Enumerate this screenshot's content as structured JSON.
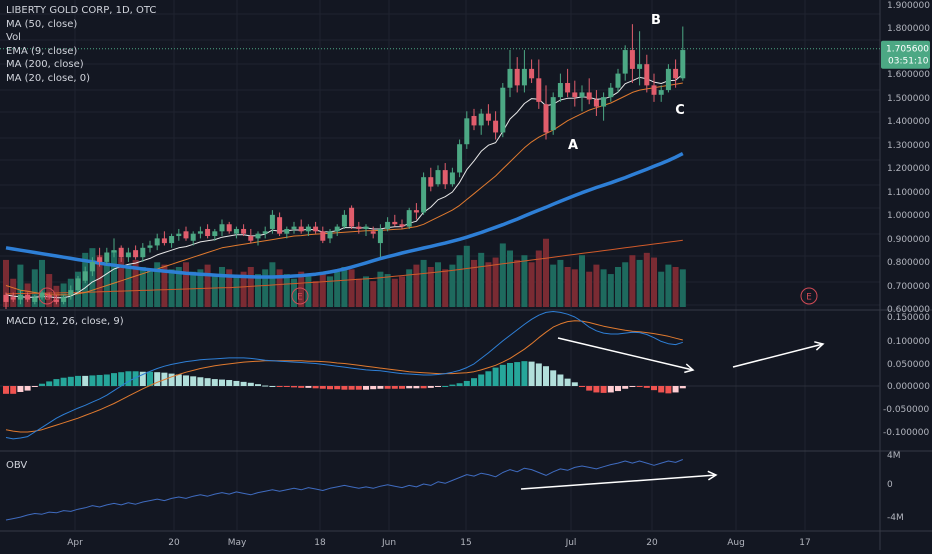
{
  "legend": {
    "title": "LIBERTY GOLD CORP, 1D, OTC",
    "items": [
      "MA (50, close)",
      "Vol",
      "EMA (9, close)",
      "MA (200, close)",
      "MA (20, close, 0)"
    ]
  },
  "colors": {
    "background": "#131722",
    "grid": "#1f2330",
    "up": "#4ca884",
    "down": "#e15d6c",
    "vol_up": "#1e6a5e",
    "vol_down": "#7a2b33",
    "ma50": "#2e7fd6",
    "ema9": "#e8e8e8",
    "ma200": "#d05a2a",
    "ma20": "#e07a2f",
    "macd_line": "#2e7fd6",
    "signal_line": "#e07a2f",
    "hist_pos_strong": "#26a69a",
    "hist_pos_weak": "#b2dfdb",
    "hist_neg_strong": "#ef5350",
    "hist_neg_weak": "#ffcdd2",
    "obv": "#3f6bbf",
    "price_label": "#4ca884",
    "annotation": "#ffffff",
    "earnings": "#d04a55"
  },
  "main_axis": {
    "ticks": [
      "1.900000",
      "1.800000",
      "1.700000",
      "1.600000",
      "1.500000",
      "1.400000",
      "1.300000",
      "1.200000",
      "1.100000",
      "1.000000",
      "0.900000",
      "0.800000",
      "0.700000",
      "0.600000"
    ],
    "last_price": "1.705600",
    "countdown": "03:51:10"
  },
  "macd": {
    "label": "MACD (12, 26, close, 9)",
    "ticks": [
      "0.150000",
      "0.100000",
      "0.050000",
      "0.000000",
      "-0.050000",
      "-0.100000"
    ]
  },
  "obv": {
    "label": "OBV",
    "ticks": [
      "4M",
      "0",
      "-4M"
    ]
  },
  "time_axis": [
    "Apr",
    "20",
    "May",
    "18",
    "Jun",
    "15",
    "Jul",
    "20",
    "Aug",
    "17"
  ],
  "annotations": {
    "a": "A",
    "b": "B",
    "c": "C"
  },
  "earnings_marker": "E",
  "chart_data": {
    "type": "candlestick",
    "title": "LIBERTY GOLD CORP, 1D, OTC",
    "ylim": [
      0.6,
      1.9
    ],
    "macd_ylim": [
      -0.13,
      0.165
    ],
    "obv_ylim": [
      -5.3,
      4.8
    ],
    "ohlc_series": [
      [
        0.66,
        0.67,
        0.6,
        0.63
      ],
      [
        0.65,
        0.67,
        0.63,
        0.64
      ],
      [
        0.64,
        0.68,
        0.62,
        0.66
      ],
      [
        0.66,
        0.67,
        0.63,
        0.64
      ],
      [
        0.63,
        0.66,
        0.62,
        0.65
      ],
      [
        0.65,
        0.68,
        0.64,
        0.67
      ],
      [
        0.66,
        0.67,
        0.64,
        0.65
      ],
      [
        0.64,
        0.66,
        0.62,
        0.63
      ],
      [
        0.63,
        0.66,
        0.62,
        0.65
      ],
      [
        0.66,
        0.7,
        0.64,
        0.68
      ],
      [
        0.68,
        0.74,
        0.67,
        0.73
      ],
      [
        0.72,
        0.78,
        0.71,
        0.76
      ],
      [
        0.76,
        0.82,
        0.74,
        0.8
      ],
      [
        0.82,
        0.86,
        0.78,
        0.8
      ],
      [
        0.8,
        0.86,
        0.79,
        0.84
      ],
      [
        0.84,
        0.9,
        0.82,
        0.85
      ],
      [
        0.86,
        0.87,
        0.8,
        0.82
      ],
      [
        0.82,
        0.86,
        0.8,
        0.84
      ],
      [
        0.85,
        0.87,
        0.81,
        0.82
      ],
      [
        0.82,
        0.88,
        0.8,
        0.86
      ],
      [
        0.86,
        0.89,
        0.84,
        0.87
      ],
      [
        0.87,
        0.92,
        0.85,
        0.9
      ],
      [
        0.9,
        0.93,
        0.87,
        0.88
      ],
      [
        0.88,
        0.92,
        0.86,
        0.91
      ],
      [
        0.91,
        0.94,
        0.89,
        0.92
      ],
      [
        0.93,
        0.95,
        0.89,
        0.9
      ],
      [
        0.89,
        0.93,
        0.87,
        0.92
      ],
      [
        0.92,
        0.95,
        0.9,
        0.93
      ],
      [
        0.94,
        0.96,
        0.9,
        0.91
      ],
      [
        0.91,
        0.94,
        0.89,
        0.93
      ],
      [
        0.93,
        0.98,
        0.91,
        0.96
      ],
      [
        0.96,
        0.97,
        0.92,
        0.93
      ],
      [
        0.92,
        0.95,
        0.9,
        0.94
      ],
      [
        0.94,
        0.96,
        0.91,
        0.92
      ],
      [
        0.91,
        0.94,
        0.88,
        0.89
      ],
      [
        0.9,
        0.93,
        0.87,
        0.92
      ],
      [
        0.92,
        0.95,
        0.9,
        0.93
      ],
      [
        0.94,
        1.02,
        0.92,
        1.0
      ],
      [
        0.99,
        1.01,
        0.91,
        0.92
      ],
      [
        0.92,
        0.95,
        0.9,
        0.94
      ],
      [
        0.94,
        0.97,
        0.92,
        0.95
      ],
      [
        0.95,
        0.98,
        0.92,
        0.93
      ],
      [
        0.93,
        0.96,
        0.91,
        0.95
      ],
      [
        0.95,
        0.97,
        0.92,
        0.93
      ],
      [
        0.93,
        0.95,
        0.88,
        0.89
      ],
      [
        0.9,
        0.94,
        0.88,
        0.93
      ],
      [
        0.93,
        0.96,
        0.91,
        0.95
      ],
      [
        0.95,
        1.02,
        0.94,
        1.0
      ],
      [
        1.03,
        1.04,
        0.94,
        0.95
      ],
      [
        0.95,
        0.97,
        0.92,
        0.94
      ],
      [
        0.94,
        0.96,
        0.91,
        0.95
      ],
      [
        0.93,
        0.95,
        0.9,
        0.92
      ],
      [
        0.88,
        0.96,
        0.82,
        0.94
      ],
      [
        0.94,
        0.99,
        0.93,
        0.97
      ],
      [
        0.97,
        1.0,
        0.95,
        0.96
      ],
      [
        0.96,
        0.98,
        0.94,
        0.95
      ],
      [
        0.95,
        1.03,
        0.94,
        1.02
      ],
      [
        1.02,
        1.05,
        0.98,
        1.01
      ],
      [
        1.01,
        1.18,
        1.0,
        1.16
      ],
      [
        1.16,
        1.2,
        1.1,
        1.12
      ],
      [
        1.13,
        1.21,
        1.12,
        1.19
      ],
      [
        1.19,
        1.22,
        1.11,
        1.13
      ],
      [
        1.13,
        1.2,
        1.12,
        1.18
      ],
      [
        1.18,
        1.32,
        1.16,
        1.3
      ],
      [
        1.3,
        1.44,
        1.28,
        1.41
      ],
      [
        1.42,
        1.45,
        1.36,
        1.38
      ],
      [
        1.38,
        1.45,
        1.34,
        1.43
      ],
      [
        1.43,
        1.47,
        1.38,
        1.4
      ],
      [
        1.4,
        1.44,
        1.32,
        1.35
      ],
      [
        1.35,
        1.56,
        1.33,
        1.54
      ],
      [
        1.54,
        1.7,
        1.5,
        1.62
      ],
      [
        1.62,
        1.67,
        1.52,
        1.55
      ],
      [
        1.55,
        1.7,
        1.52,
        1.62
      ],
      [
        1.62,
        1.66,
        1.56,
        1.58
      ],
      [
        1.58,
        1.66,
        1.45,
        1.48
      ],
      [
        1.47,
        1.55,
        1.32,
        1.35
      ],
      [
        1.36,
        1.52,
        1.34,
        1.5
      ],
      [
        1.5,
        1.6,
        1.48,
        1.56
      ],
      [
        1.56,
        1.62,
        1.5,
        1.52
      ],
      [
        1.52,
        1.57,
        1.46,
        1.5
      ],
      [
        1.5,
        1.55,
        1.44,
        1.52
      ],
      [
        1.52,
        1.58,
        1.47,
        1.49
      ],
      [
        1.49,
        1.53,
        1.42,
        1.46
      ],
      [
        1.46,
        1.52,
        1.4,
        1.5
      ],
      [
        1.5,
        1.56,
        1.48,
        1.54
      ],
      [
        1.54,
        1.62,
        1.52,
        1.6
      ],
      [
        1.6,
        1.72,
        1.57,
        1.7
      ],
      [
        1.7,
        1.81,
        1.56,
        1.62
      ],
      [
        1.62,
        1.78,
        1.55,
        1.64
      ],
      [
        1.64,
        1.68,
        1.52,
        1.55
      ],
      [
        1.55,
        1.6,
        1.48,
        1.51
      ],
      [
        1.51,
        1.55,
        1.48,
        1.53
      ],
      [
        1.53,
        1.64,
        1.52,
        1.62
      ],
      [
        1.62,
        1.66,
        1.54,
        1.58
      ],
      [
        1.58,
        1.8,
        1.57,
        1.7
      ]
    ],
    "volume_series": [
      0.8,
      0.72,
      0.78,
      0.7,
      0.76,
      0.8,
      0.74,
      0.69,
      0.7,
      0.72,
      0.75,
      0.83,
      0.85,
      0.82,
      0.79,
      0.84,
      0.81,
      0.78,
      0.8,
      0.77,
      0.76,
      0.79,
      0.78,
      0.76,
      0.77,
      0.79,
      0.75,
      0.76,
      0.78,
      0.74,
      0.77,
      0.76,
      0.73,
      0.75,
      0.77,
      0.74,
      0.76,
      0.79,
      0.76,
      0.74,
      0.72,
      0.75,
      0.73,
      0.71,
      0.74,
      0.73,
      0.75,
      0.77,
      0.76,
      0.72,
      0.73,
      0.71,
      0.75,
      0.74,
      0.72,
      0.73,
      0.76,
      0.78,
      0.8,
      0.77,
      0.79,
      0.76,
      0.78,
      0.82,
      0.86,
      0.8,
      0.83,
      0.79,
      0.81,
      0.87,
      0.84,
      0.8,
      0.82,
      0.79,
      0.84,
      0.89,
      0.78,
      0.8,
      0.77,
      0.76,
      0.82,
      0.75,
      0.78,
      0.76,
      0.74,
      0.77,
      0.79,
      0.82,
      0.8,
      0.83,
      0.81,
      0.75,
      0.78,
      0.77,
      0.76
    ],
    "ma50_series": [
      0.86,
      0.855,
      0.85,
      0.845,
      0.84,
      0.835,
      0.83,
      0.825,
      0.82,
      0.815,
      0.81,
      0.805,
      0.8,
      0.795,
      0.79,
      0.786,
      0.782,
      0.778,
      0.774,
      0.77,
      0.767,
      0.764,
      0.761,
      0.758,
      0.755,
      0.752,
      0.75,
      0.748,
      0.746,
      0.744,
      0.742,
      0.74,
      0.739,
      0.738,
      0.737,
      0.736,
      0.736,
      0.736,
      0.737,
      0.738,
      0.74,
      0.742,
      0.745,
      0.748,
      0.752,
      0.757,
      0.763,
      0.77,
      0.778,
      0.787,
      0.796,
      0.805,
      0.814,
      0.822,
      0.83,
      0.838,
      0.845,
      0.852,
      0.859,
      0.866,
      0.873,
      0.88,
      0.888,
      0.896,
      0.905,
      0.915,
      0.925,
      0.936,
      0.947,
      0.958,
      0.97,
      0.982,
      0.995,
      1.008,
      1.02,
      1.032,
      1.045,
      1.058,
      1.07,
      1.082,
      1.094,
      1.105,
      1.116,
      1.126,
      1.136,
      1.147,
      1.158,
      1.17,
      1.182,
      1.194,
      1.206,
      1.218,
      1.231,
      1.245,
      1.26
    ],
    "ema9_series": [
      0.66,
      0.655,
      0.652,
      0.65,
      0.65,
      0.653,
      0.652,
      0.648,
      0.648,
      0.655,
      0.67,
      0.69,
      0.715,
      0.73,
      0.75,
      0.77,
      0.78,
      0.79,
      0.795,
      0.805,
      0.815,
      0.83,
      0.84,
      0.85,
      0.86,
      0.865,
      0.875,
      0.885,
      0.89,
      0.895,
      0.905,
      0.91,
      0.915,
      0.915,
      0.91,
      0.912,
      0.918,
      0.935,
      0.93,
      0.932,
      0.936,
      0.935,
      0.938,
      0.936,
      0.927,
      0.928,
      0.932,
      0.946,
      0.946,
      0.944,
      0.945,
      0.94,
      0.94,
      0.946,
      0.949,
      0.95,
      0.964,
      0.973,
      1.011,
      1.033,
      1.064,
      1.077,
      1.097,
      1.138,
      1.192,
      1.229,
      1.27,
      1.296,
      1.307,
      1.354,
      1.407,
      1.436,
      1.473,
      1.494,
      1.491,
      1.463,
      1.47,
      1.488,
      1.495,
      1.496,
      1.501,
      1.499,
      1.491,
      1.493,
      1.502,
      1.521,
      1.557,
      1.57,
      1.584,
      1.578,
      1.564,
      1.558,
      1.57,
      1.572,
      1.598
    ],
    "ma20_series": [
      0.7,
      0.69,
      0.68,
      0.675,
      0.67,
      0.665,
      0.66,
      0.66,
      0.66,
      0.66,
      0.665,
      0.67,
      0.68,
      0.69,
      0.7,
      0.71,
      0.72,
      0.73,
      0.74,
      0.75,
      0.76,
      0.77,
      0.78,
      0.79,
      0.8,
      0.81,
      0.82,
      0.83,
      0.84,
      0.85,
      0.86,
      0.865,
      0.87,
      0.875,
      0.88,
      0.885,
      0.89,
      0.895,
      0.9,
      0.905,
      0.91,
      0.912,
      0.915,
      0.918,
      0.92,
      0.922,
      0.924,
      0.926,
      0.928,
      0.93,
      0.932,
      0.933,
      0.934,
      0.936,
      0.938,
      0.94,
      0.945,
      0.95,
      0.96,
      0.975,
      0.99,
      1.005,
      1.02,
      1.04,
      1.065,
      1.09,
      1.115,
      1.14,
      1.165,
      1.195,
      1.225,
      1.255,
      1.285,
      1.31,
      1.33,
      1.345,
      1.36,
      1.38,
      1.4,
      1.415,
      1.43,
      1.445,
      1.455,
      1.465,
      1.475,
      1.49,
      1.505,
      1.52,
      1.53,
      1.535,
      1.54,
      1.545,
      1.55,
      1.555,
      1.56
    ],
    "ma200_series": [
      0.665,
      0.665,
      0.666,
      0.666,
      0.667,
      0.667,
      0.668,
      0.668,
      0.669,
      0.669,
      0.67,
      0.671,
      0.672,
      0.673,
      0.674,
      0.675,
      0.676,
      0.677,
      0.678,
      0.679,
      0.68,
      0.681,
      0.682,
      0.683,
      0.684,
      0.685,
      0.686,
      0.687,
      0.688,
      0.689,
      0.69,
      0.691,
      0.692,
      0.694,
      0.696,
      0.698,
      0.7,
      0.702,
      0.704,
      0.706,
      0.708,
      0.71,
      0.712,
      0.714,
      0.716,
      0.718,
      0.72,
      0.722,
      0.724,
      0.726,
      0.728,
      0.73,
      0.733,
      0.736,
      0.739,
      0.742,
      0.745,
      0.748,
      0.751,
      0.754,
      0.757,
      0.76,
      0.764,
      0.768,
      0.772,
      0.776,
      0.78,
      0.784,
      0.788,
      0.792,
      0.796,
      0.8,
      0.804,
      0.808,
      0.812,
      0.816,
      0.82,
      0.824,
      0.828,
      0.832,
      0.836,
      0.84,
      0.844,
      0.848,
      0.852,
      0.856,
      0.86,
      0.864,
      0.868,
      0.872,
      0.876,
      0.88,
      0.884,
      0.888,
      0.892
    ],
    "macd_series": [
      -0.112,
      -0.115,
      -0.113,
      -0.11,
      -0.1,
      -0.09,
      -0.08,
      -0.07,
      -0.062,
      -0.055,
      -0.048,
      -0.042,
      -0.035,
      -0.028,
      -0.02,
      -0.01,
      0.0,
      0.01,
      0.018,
      0.025,
      0.032,
      0.038,
      0.043,
      0.047,
      0.05,
      0.053,
      0.055,
      0.057,
      0.058,
      0.059,
      0.06,
      0.061,
      0.061,
      0.061,
      0.06,
      0.058,
      0.056,
      0.055,
      0.054,
      0.053,
      0.052,
      0.051,
      0.05,
      0.049,
      0.047,
      0.045,
      0.043,
      0.041,
      0.039,
      0.037,
      0.035,
      0.034,
      0.033,
      0.031,
      0.029,
      0.027,
      0.026,
      0.025,
      0.024,
      0.024,
      0.025,
      0.027,
      0.03,
      0.034,
      0.04,
      0.048,
      0.06,
      0.072,
      0.085,
      0.098,
      0.11,
      0.122,
      0.134,
      0.145,
      0.154,
      0.16,
      0.162,
      0.16,
      0.156,
      0.15,
      0.14,
      0.128,
      0.12,
      0.115,
      0.113,
      0.113,
      0.115,
      0.117,
      0.116,
      0.112,
      0.105,
      0.097,
      0.092,
      0.09,
      0.095
    ],
    "signal_series": [
      -0.095,
      -0.098,
      -0.1,
      -0.1,
      -0.098,
      -0.095,
      -0.09,
      -0.085,
      -0.08,
      -0.075,
      -0.07,
      -0.064,
      -0.058,
      -0.052,
      -0.045,
      -0.038,
      -0.03,
      -0.022,
      -0.014,
      -0.006,
      0.001,
      0.008,
      0.014,
      0.02,
      0.025,
      0.03,
      0.034,
      0.038,
      0.041,
      0.044,
      0.046,
      0.048,
      0.05,
      0.052,
      0.053,
      0.054,
      0.055,
      0.055,
      0.055,
      0.055,
      0.055,
      0.055,
      0.054,
      0.054,
      0.053,
      0.052,
      0.05,
      0.049,
      0.047,
      0.045,
      0.043,
      0.041,
      0.039,
      0.037,
      0.035,
      0.033,
      0.031,
      0.03,
      0.029,
      0.028,
      0.027,
      0.027,
      0.027,
      0.028,
      0.029,
      0.031,
      0.035,
      0.04,
      0.045,
      0.052,
      0.06,
      0.07,
      0.08,
      0.092,
      0.105,
      0.117,
      0.128,
      0.135,
      0.14,
      0.142,
      0.141,
      0.138,
      0.134,
      0.13,
      0.127,
      0.124,
      0.121,
      0.119,
      0.118,
      0.116,
      0.114,
      0.111,
      0.108,
      0.104,
      0.1
    ],
    "obv_series": [
      -5.0,
      -4.8,
      -4.6,
      -4.3,
      -4.1,
      -4.2,
      -3.9,
      -4.0,
      -3.7,
      -3.8,
      -3.5,
      -3.3,
      -3.0,
      -3.2,
      -2.9,
      -2.7,
      -2.9,
      -2.6,
      -2.8,
      -2.5,
      -2.3,
      -2.1,
      -2.3,
      -2.0,
      -1.8,
      -2.0,
      -1.7,
      -1.5,
      -1.7,
      -1.4,
      -1.2,
      -1.4,
      -1.1,
      -1.3,
      -1.5,
      -1.2,
      -1.0,
      -0.8,
      -1.0,
      -0.8,
      -0.6,
      -0.8,
      -0.5,
      -0.7,
      -0.9,
      -0.6,
      -0.4,
      -0.2,
      -0.4,
      -0.6,
      -0.4,
      -0.6,
      -0.3,
      -0.1,
      -0.3,
      -0.5,
      -0.2,
      -0.4,
      0.0,
      -0.2,
      0.3,
      0.1,
      0.5,
      0.9,
      1.3,
      1.1,
      1.5,
      1.3,
      1.0,
      1.6,
      2.0,
      1.7,
      2.2,
      2.0,
      1.6,
      1.2,
      1.7,
      2.1,
      1.9,
      2.3,
      2.5,
      2.3,
      2.1,
      2.4,
      2.7,
      2.9,
      3.2,
      2.9,
      3.2,
      2.9,
      2.6,
      2.9,
      3.2,
      3.0,
      3.4
    ]
  }
}
